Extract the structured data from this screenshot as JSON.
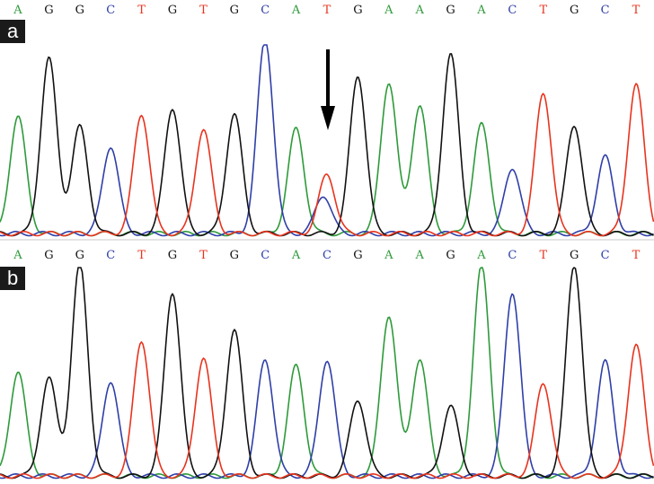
{
  "figure": {
    "panels": [
      {
        "label": "a"
      },
      {
        "label": "b"
      }
    ]
  },
  "colors": {
    "A": "#2e9a3a",
    "G": "#111111",
    "C": "#2f3fa8",
    "T": "#e8331e",
    "background": "#ffffff",
    "label_box": "#1a1a1a",
    "arrow": "#000000"
  },
  "chart_data": [
    {
      "type": "line",
      "title": "",
      "panel": "a",
      "sequence": [
        "A",
        "G",
        "G",
        "C",
        "T",
        "G",
        "T",
        "G",
        "C",
        "A",
        "T",
        "G",
        "A",
        "A",
        "G",
        "A",
        "C",
        "T",
        "G",
        "C",
        "T"
      ],
      "peaks": [
        {
          "base": "A",
          "height": 0.55
        },
        {
          "base": "G",
          "height": 0.82
        },
        {
          "base": "G",
          "height": 0.5
        },
        {
          "base": "C",
          "height": 0.41
        },
        {
          "base": "T",
          "height": 0.56
        },
        {
          "base": "G",
          "height": 0.59
        },
        {
          "base": "T",
          "height": 0.49
        },
        {
          "base": "G",
          "height": 0.56
        },
        {
          "base": "C",
          "height": 0.91
        },
        {
          "base": "A",
          "height": 0.49
        },
        {
          "base": "T",
          "height": 0.28,
          "secondary": {
            "base": "C",
            "height": 0.18
          }
        },
        {
          "base": "G",
          "height": 0.74
        },
        {
          "base": "A",
          "height": 0.71
        },
        {
          "base": "A",
          "height": 0.6
        },
        {
          "base": "G",
          "height": 0.84
        },
        {
          "base": "A",
          "height": 0.51
        },
        {
          "base": "C",
          "height": 0.31
        },
        {
          "base": "T",
          "height": 0.66
        },
        {
          "base": "G",
          "height": 0.51
        },
        {
          "base": "C",
          "height": 0.36
        },
        {
          "base": "T",
          "height": 0.7
        }
      ],
      "annotation": {
        "type": "arrow",
        "target_peak_index": 10
      }
    },
    {
      "type": "line",
      "title": "",
      "panel": "b",
      "sequence": [
        "A",
        "G",
        "G",
        "C",
        "T",
        "G",
        "T",
        "G",
        "C",
        "A",
        "C",
        "G",
        "A",
        "A",
        "G",
        "A",
        "C",
        "T",
        "G",
        "C",
        "T"
      ],
      "peaks": [
        {
          "base": "A",
          "height": 0.49
        },
        {
          "base": "G",
          "height": 0.46
        },
        {
          "base": "G",
          "height": 1.0
        },
        {
          "base": "C",
          "height": 0.45
        },
        {
          "base": "T",
          "height": 0.64
        },
        {
          "base": "G",
          "height": 0.87
        },
        {
          "base": "T",
          "height": 0.56
        },
        {
          "base": "G",
          "height": 0.69
        },
        {
          "base": "C",
          "height": 0.55
        },
        {
          "base": "A",
          "height": 0.52
        },
        {
          "base": "C",
          "height": 0.55
        },
        {
          "base": "G",
          "height": 0.36
        },
        {
          "base": "A",
          "height": 0.76
        },
        {
          "base": "A",
          "height": 0.55
        },
        {
          "base": "G",
          "height": 0.33
        },
        {
          "base": "A",
          "height": 0.99
        },
        {
          "base": "C",
          "height": 0.87
        },
        {
          "base": "T",
          "height": 0.44
        },
        {
          "base": "G",
          "height": 1.0
        },
        {
          "base": "C",
          "height": 0.54
        },
        {
          "base": "T",
          "height": 0.62
        }
      ]
    }
  ]
}
